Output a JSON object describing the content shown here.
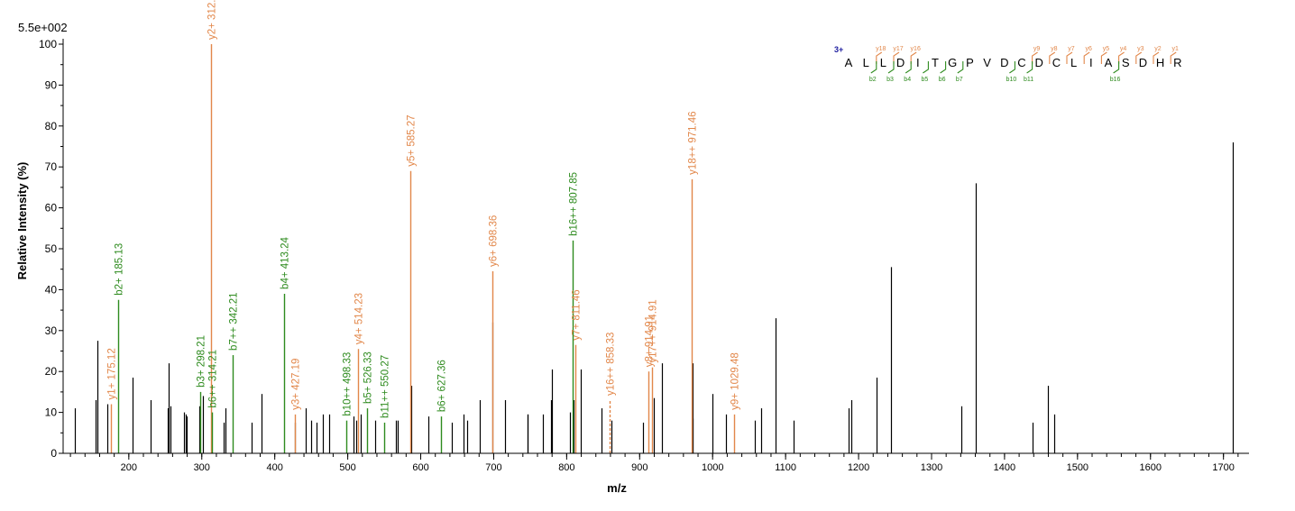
{
  "chart_data": {
    "type": "bar",
    "scale_label": "5.5e+002",
    "xlabel": "m/z",
    "ylabel": "Relative Intensity (%)",
    "xlim": [
      110,
      1735
    ],
    "ylim": [
      0,
      100
    ],
    "x_ticks": [
      200,
      300,
      400,
      500,
      600,
      700,
      800,
      900,
      1000,
      1100,
      1200,
      1300,
      1400,
      1500,
      1600,
      1700
    ],
    "y_ticks": [
      0,
      10,
      20,
      30,
      40,
      50,
      60,
      70,
      80,
      90,
      100
    ],
    "colors": {
      "y_ion": "#e2874a",
      "b_ion": "#2e8b1e",
      "unmatched": "#000000",
      "charge": "#2020a0",
      "sequence": "#000000"
    },
    "peaks": [
      {
        "x": 126,
        "y": 11
      },
      {
        "x": 155,
        "y": 13
      },
      {
        "x": 157,
        "y": 27.5
      },
      {
        "x": 171,
        "y": 12
      },
      {
        "x": 205,
        "y": 18.5
      },
      {
        "x": 230,
        "y": 13
      },
      {
        "x": 253,
        "y": 11
      },
      {
        "x": 255,
        "y": 22
      },
      {
        "x": 257,
        "y": 11.5
      },
      {
        "x": 276,
        "y": 10
      },
      {
        "x": 278,
        "y": 9.5
      },
      {
        "x": 279,
        "y": 9
      },
      {
        "x": 296,
        "y": 11.5
      },
      {
        "x": 301,
        "y": 14
      },
      {
        "x": 330,
        "y": 7.5
      },
      {
        "x": 332,
        "y": 11
      },
      {
        "x": 368,
        "y": 7.5
      },
      {
        "x": 382,
        "y": 14.5
      },
      {
        "x": 427,
        "y": 7.5
      },
      {
        "x": 443,
        "y": 11
      },
      {
        "x": 450,
        "y": 8
      },
      {
        "x": 457,
        "y": 7.5
      },
      {
        "x": 466,
        "y": 9.5
      },
      {
        "x": 475,
        "y": 9.5
      },
      {
        "x": 508,
        "y": 9
      },
      {
        "x": 512,
        "y": 8
      },
      {
        "x": 518,
        "y": 9.5
      },
      {
        "x": 537,
        "y": 8
      },
      {
        "x": 566,
        "y": 8
      },
      {
        "x": 568,
        "y": 8
      },
      {
        "x": 587,
        "y": 16.5
      },
      {
        "x": 611,
        "y": 9
      },
      {
        "x": 643,
        "y": 7.5
      },
      {
        "x": 659,
        "y": 9.5
      },
      {
        "x": 663,
        "y": 8
      },
      {
        "x": 681,
        "y": 13
      },
      {
        "x": 698,
        "y": 32
      },
      {
        "x": 716,
        "y": 13
      },
      {
        "x": 746,
        "y": 9.5
      },
      {
        "x": 747,
        "y": 9.5
      },
      {
        "x": 768,
        "y": 9.5
      },
      {
        "x": 778,
        "y": 13
      },
      {
        "x": 780,
        "y": 20.5
      },
      {
        "x": 805,
        "y": 10
      },
      {
        "x": 809,
        "y": 13
      },
      {
        "x": 819,
        "y": 20.5
      },
      {
        "x": 848,
        "y": 11
      },
      {
        "x": 861,
        "y": 8
      },
      {
        "x": 904,
        "y": 7.5
      },
      {
        "x": 920,
        "y": 13.5
      },
      {
        "x": 930,
        "y": 22
      },
      {
        "x": 972,
        "y": 22
      },
      {
        "x": 973,
        "y": 8.5
      },
      {
        "x": 1000,
        "y": 14.5
      },
      {
        "x": 1018,
        "y": 9.5
      },
      {
        "x": 1058,
        "y": 8
      },
      {
        "x": 1067,
        "y": 11
      },
      {
        "x": 1086,
        "y": 33
      },
      {
        "x": 1111,
        "y": 8
      },
      {
        "x": 1186,
        "y": 11
      },
      {
        "x": 1190,
        "y": 13
      },
      {
        "x": 1225,
        "y": 18.5
      },
      {
        "x": 1245,
        "y": 45.5
      },
      {
        "x": 1341,
        "y": 11.5
      },
      {
        "x": 1360,
        "y": 66
      },
      {
        "x": 1439,
        "y": 7.5
      },
      {
        "x": 1459,
        "y": 16.5
      },
      {
        "x": 1468,
        "y": 9.5
      },
      {
        "x": 1713,
        "y": 76
      }
    ],
    "annotations": [
      {
        "label": "y1+ 175.12",
        "x": 175.12,
        "y": 12,
        "series": "y"
      },
      {
        "label": "b2+ 185.13",
        "x": 185.13,
        "y": 37.5,
        "series": "b"
      },
      {
        "label": "b3+ 298.21",
        "x": 298.21,
        "y": 15,
        "series": "b"
      },
      {
        "label": "y2+ 312.18",
        "x": 312.18,
        "y": 100,
        "series": "y"
      },
      {
        "label": "b6++ 314.21",
        "x": 314.21,
        "y": 10,
        "series": "b"
      },
      {
        "label": "b7++ 342.21",
        "x": 342.21,
        "y": 24,
        "series": "b"
      },
      {
        "label": "b4+ 413.24",
        "x": 413.24,
        "y": 39,
        "series": "b"
      },
      {
        "label": "y3+ 427.19",
        "x": 427.19,
        "y": 9.5,
        "series": "y"
      },
      {
        "label": "b10++ 498.33",
        "x": 498.33,
        "y": 8,
        "series": "b"
      },
      {
        "label": "y4+ 514.23",
        "x": 514.23,
        "y": 25.5,
        "series": "y"
      },
      {
        "label": "b5+ 526.33",
        "x": 526.33,
        "y": 11,
        "series": "b"
      },
      {
        "label": "b11++ 550.27",
        "x": 550.27,
        "y": 7.5,
        "series": "b"
      },
      {
        "label": "y5+ 585.27",
        "x": 585.27,
        "y": 69,
        "series": "y"
      },
      {
        "label": "b6+ 627.36",
        "x": 627.36,
        "y": 9,
        "series": "b"
      },
      {
        "label": "y6+ 698.36",
        "x": 698.36,
        "y": 44.5,
        "series": "y"
      },
      {
        "label": "b16++ 807.85",
        "x": 807.85,
        "y": 52,
        "series": "b"
      },
      {
        "label": "y7+ 811.46",
        "x": 811.46,
        "y": 26.5,
        "series": "y"
      },
      {
        "label": "y16++ 858.33",
        "x": 858.33,
        "y": 13,
        "series": "y",
        "dashed": true
      },
      {
        "label": "y8+ 914.91",
        "x": 912,
        "y": 20,
        "series": "y"
      },
      {
        "label": "y17++ 914.91",
        "x": 917,
        "y": 21,
        "series": "y"
      },
      {
        "label": "y18++ 971.46",
        "x": 971.46,
        "y": 67,
        "series": "y"
      },
      {
        "label": "y9+ 1029.48",
        "x": 1029.48,
        "y": 9.5,
        "series": "y"
      }
    ],
    "sequence": {
      "charge_label": "3+",
      "residues": [
        "A",
        "L",
        "L",
        "D",
        "I",
        "T",
        "G",
        "P",
        "V",
        "D",
        "C",
        "D",
        "C",
        "L",
        "I",
        "A",
        "S",
        "D",
        "H",
        "R"
      ],
      "y_labels": [
        {
          "after": 2,
          "text": "y18"
        },
        {
          "after": 3,
          "text": "y17"
        },
        {
          "after": 4,
          "text": "y16"
        },
        {
          "after": 11,
          "text": "y9"
        },
        {
          "after": 12,
          "text": "y8"
        },
        {
          "after": 13,
          "text": "y7"
        },
        {
          "after": 14,
          "text": "y6"
        },
        {
          "after": 15,
          "text": "y5"
        },
        {
          "after": 16,
          "text": "y4"
        },
        {
          "after": 17,
          "text": "y3"
        },
        {
          "after": 18,
          "text": "y2"
        },
        {
          "after": 19,
          "text": "y1"
        }
      ],
      "b_labels": [
        {
          "after": 2,
          "text": "b2"
        },
        {
          "after": 3,
          "text": "b3"
        },
        {
          "after": 4,
          "text": "b4"
        },
        {
          "after": 5,
          "text": "b5"
        },
        {
          "after": 6,
          "text": "b6"
        },
        {
          "after": 7,
          "text": "b7"
        },
        {
          "after": 10,
          "text": "b10"
        },
        {
          "after": 11,
          "text": "b11"
        },
        {
          "after": 16,
          "text": "b16"
        }
      ]
    }
  }
}
